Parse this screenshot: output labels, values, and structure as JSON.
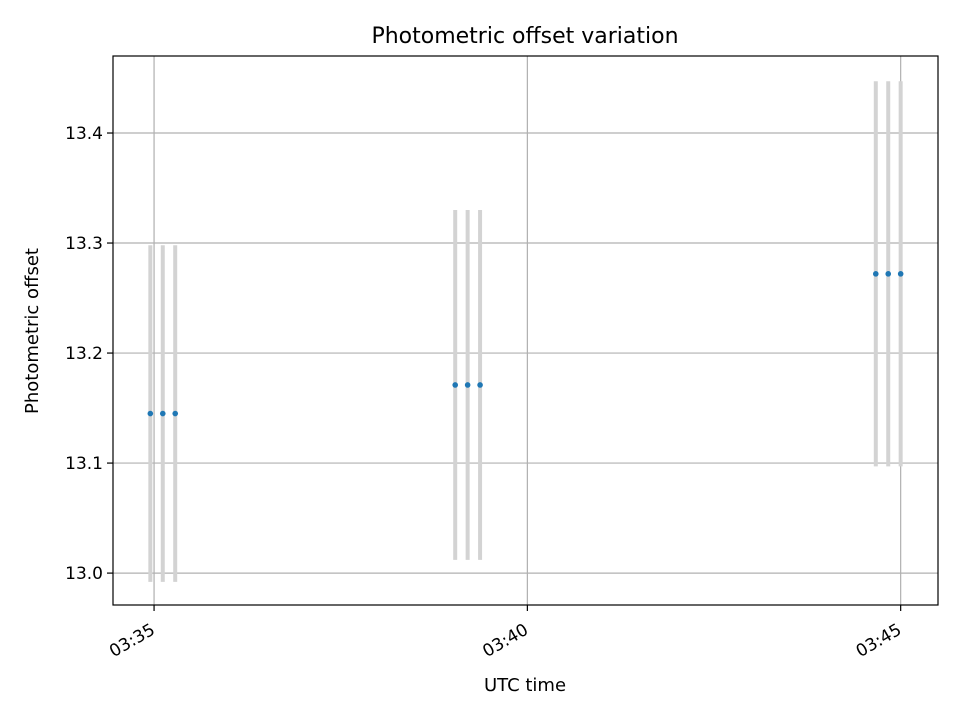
{
  "chart_data": {
    "type": "scatter",
    "title": "Photometric offset variation",
    "xlabel": "UTC time",
    "ylabel": "Photometric offset",
    "x_ticks": [
      "03:35",
      "03:40",
      "03:45"
    ],
    "y_ticks": [
      "13.0",
      "13.1",
      "13.2",
      "13.3",
      "13.4"
    ],
    "xlim": [
      "03:34:27",
      "03:45:30"
    ],
    "ylim": [
      12.971,
      13.47
    ],
    "grid": true,
    "colors": {
      "point": "#1f77b4",
      "errorbar": "#d3d3d3",
      "grid": "#b0b0b0"
    },
    "series": [
      {
        "points": [
          {
            "x": "03:34:57",
            "y": 13.145,
            "err": 0.153
          },
          {
            "x": "03:35:07",
            "y": 13.145,
            "err": 0.153
          },
          {
            "x": "03:35:17",
            "y": 13.145,
            "err": 0.153
          },
          {
            "x": "03:39:02",
            "y": 13.171,
            "err": 0.159
          },
          {
            "x": "03:39:12",
            "y": 13.171,
            "err": 0.159
          },
          {
            "x": "03:39:22",
            "y": 13.171,
            "err": 0.159
          },
          {
            "x": "03:44:40",
            "y": 13.272,
            "err": 0.175
          },
          {
            "x": "03:44:50",
            "y": 13.272,
            "err": 0.175
          },
          {
            "x": "03:45:00",
            "y": 13.272,
            "err": 0.175
          }
        ]
      }
    ]
  }
}
